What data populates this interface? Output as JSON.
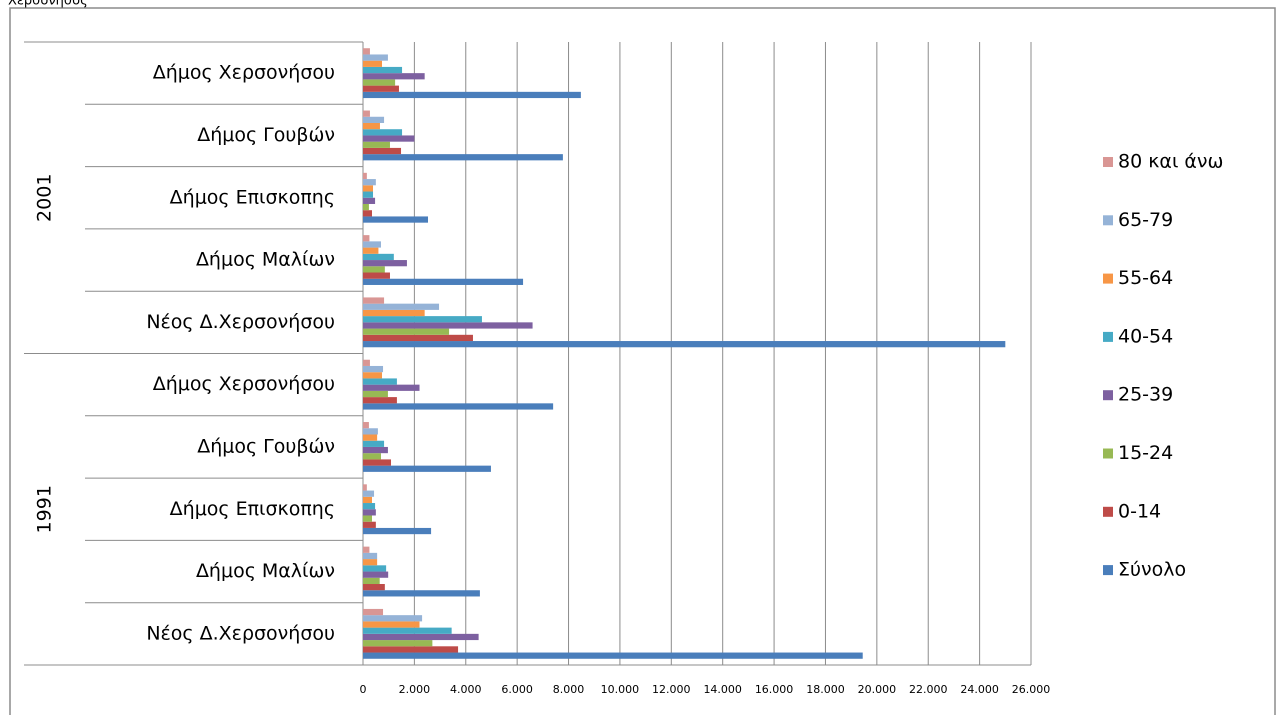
{
  "chart_data": {
    "type": "bar",
    "orientation": "horizontal",
    "title": "Χερσόνησος",
    "groups": [
      {
        "name": "1991",
        "categories": [
          "Νέος Δ.Χερσονήσου",
          "Δήμος Μαλίων",
          "Δήμος Επισκοπης",
          "Δήμος Γουβών",
          "Δήμος Χερσονήσου"
        ]
      },
      {
        "name": "2001",
        "categories": [
          "Νέος Δ.Χερσονήσου",
          "Δήμος Μαλίων",
          "Δήμος Επισκοπης",
          "Δήμος Γουβών",
          "Δήμος Χερσονήσου"
        ]
      }
    ],
    "series": [
      {
        "name": "Σύνολο",
        "color": "#4a7ebb",
        "values": [
          19450,
          4550,
          2650,
          4980,
          7400,
          25000,
          6230,
          2530,
          7780,
          8480
        ]
      },
      {
        "name": "0-14",
        "color": "#be4b48",
        "values": [
          3700,
          850,
          500,
          1090,
          1320,
          4280,
          1050,
          350,
          1480,
          1400
        ]
      },
      {
        "name": "15-24",
        "color": "#98b954",
        "values": [
          2700,
          650,
          350,
          700,
          970,
          3350,
          850,
          230,
          1050,
          1250
        ]
      },
      {
        "name": "25-39",
        "color": "#7d60a0",
        "values": [
          4500,
          980,
          500,
          970,
          2200,
          6600,
          1710,
          470,
          2000,
          2400
        ]
      },
      {
        "name": "40-54",
        "color": "#46aac5",
        "values": [
          3450,
          900,
          470,
          820,
          1320,
          4630,
          1200,
          390,
          1520,
          1520
        ]
      },
      {
        "name": "55-64",
        "color": "#f79646",
        "values": [
          2200,
          550,
          350,
          550,
          740,
          2400,
          600,
          390,
          660,
          740
        ]
      },
      {
        "name": "65-79",
        "color": "#95b3d7",
        "values": [
          2300,
          550,
          430,
          580,
          780,
          2960,
          700,
          500,
          820,
          970
        ]
      },
      {
        "name": "80 και άνω",
        "color": "#d99694",
        "values": [
          780,
          250,
          150,
          230,
          270,
          820,
          250,
          150,
          270,
          270
        ]
      }
    ],
    "xlim": [
      0,
      26000
    ],
    "xticks": [
      0,
      {
        "value": 2000,
        "label": "2.000"
      },
      {
        "value": 4000,
        "label": "4.000"
      },
      {
        "value": 6000,
        "label": "6.000"
      },
      {
        "value": 8000,
        "label": "8.000"
      },
      {
        "value": 10000,
        "label": "10.000"
      },
      {
        "value": 12000,
        "label": "12.000"
      },
      {
        "value": 14000,
        "label": "14.000"
      },
      {
        "value": 16000,
        "label": "16.000"
      },
      {
        "value": 18000,
        "label": "18.000"
      },
      {
        "value": 20000,
        "label": "20.000"
      },
      {
        "value": 22000,
        "label": "22.000"
      },
      {
        "value": 24000,
        "label": "24.000"
      },
      {
        "value": 26000,
        "label": "26.000"
      }
    ],
    "grid": true,
    "legend": "right"
  }
}
